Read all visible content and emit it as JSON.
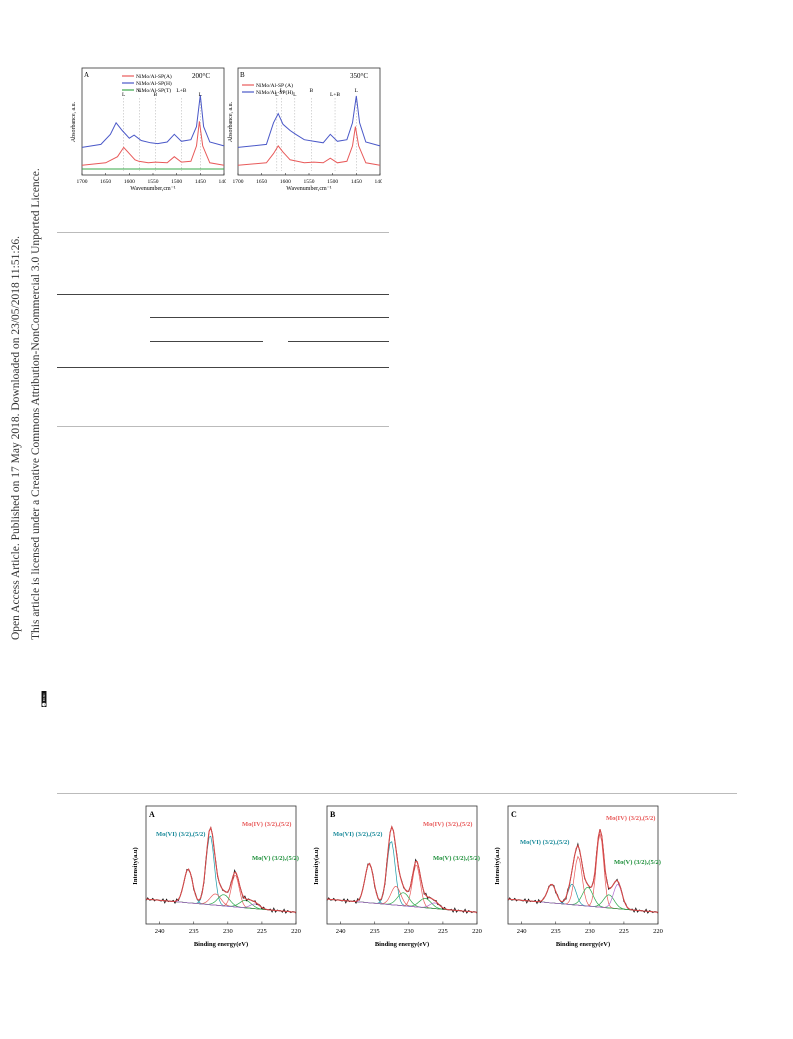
{
  "sidebar": {
    "line1": "Open Access Article. Published on 17 May 2018. Downloaded on 23/05/2018 11:51:26.",
    "line2": "This article is licensed under a Creative Commons Attribution-NonCommercial 3.0 Unported Licence.",
    "badge": "BY-NC"
  },
  "chart_data": [
    {
      "type": "line",
      "panel_label": "A",
      "temperature": "200°C",
      "xlabel": "Wavenumber,cm⁻¹",
      "ylabel": "Absorbance, a.u.",
      "xlim": [
        1700,
        1400
      ],
      "x_ticks": [
        "1700",
        "1650",
        "1600",
        "1550",
        "1500",
        "1450",
        "1400"
      ],
      "series": [
        {
          "name": "NiMo/Al-SP(A)",
          "color": "#e85a5a",
          "x": [
            1700,
            1650,
            1625,
            1612,
            1600,
            1588,
            1580,
            1560,
            1545,
            1520,
            1505,
            1490,
            1470,
            1458,
            1452,
            1445,
            1430,
            1400
          ],
          "y": [
            0.05,
            0.08,
            0.16,
            0.28,
            0.2,
            0.12,
            0.1,
            0.08,
            0.09,
            0.08,
            0.16,
            0.09,
            0.1,
            0.3,
            0.62,
            0.3,
            0.08,
            0.05
          ]
        },
        {
          "name": "NiMo/Al-SP(H)",
          "color": "#4a58c8",
          "x": [
            1700,
            1660,
            1640,
            1628,
            1615,
            1600,
            1590,
            1575,
            1555,
            1540,
            1520,
            1505,
            1490,
            1470,
            1458,
            1450,
            1443,
            1430,
            1400
          ],
          "y": [
            0.28,
            0.32,
            0.45,
            0.6,
            0.5,
            0.4,
            0.44,
            0.37,
            0.34,
            0.33,
            0.35,
            0.45,
            0.36,
            0.38,
            0.55,
            0.96,
            0.55,
            0.35,
            0.3
          ]
        },
        {
          "name": "NiMo/Al-SP(T)",
          "color": "#3aa84a",
          "x": [
            1700,
            1400
          ],
          "y": [
            0.0,
            0.0
          ]
        }
      ],
      "annotations": [
        "L",
        "L",
        "B",
        "L+B",
        "L"
      ]
    },
    {
      "type": "line",
      "panel_label": "B",
      "temperature": "350°C",
      "xlabel": "Wavenumber,cm⁻¹",
      "ylabel": "Absorbance, a.u.",
      "xlim": [
        1700,
        1400
      ],
      "x_ticks": [
        "1700",
        "1650",
        "1600",
        "1550",
        "1500",
        "1450",
        "1400"
      ],
      "series": [
        {
          "name": "NiMo/Al-SP (A)",
          "color": "#e85a5a",
          "x": [
            1700,
            1640,
            1625,
            1615,
            1605,
            1590,
            1575,
            1560,
            1540,
            1520,
            1505,
            1490,
            1470,
            1458,
            1452,
            1445,
            1430,
            1400
          ],
          "y": [
            0.05,
            0.08,
            0.2,
            0.3,
            0.22,
            0.12,
            0.1,
            0.08,
            0.09,
            0.08,
            0.14,
            0.08,
            0.1,
            0.3,
            0.55,
            0.3,
            0.08,
            0.05
          ]
        },
        {
          "name": "NiMo/Al -SP(H)",
          "color": "#4a58c8",
          "x": [
            1700,
            1640,
            1625,
            1615,
            1605,
            1590,
            1578,
            1560,
            1540,
            1520,
            1505,
            1490,
            1470,
            1458,
            1450,
            1443,
            1430,
            1400
          ],
          "y": [
            0.28,
            0.32,
            0.6,
            0.72,
            0.58,
            0.5,
            0.45,
            0.38,
            0.36,
            0.34,
            0.45,
            0.36,
            0.38,
            0.6,
            0.95,
            0.6,
            0.35,
            0.3
          ]
        }
      ],
      "annotations": [
        "L",
        "L",
        "L",
        "B",
        "L+B",
        "L"
      ]
    },
    {
      "type": "line",
      "panel_label": "A",
      "xlabel": "Binding energy(eV)",
      "ylabel": "Intensity(a.u)",
      "xlim": [
        242,
        220
      ],
      "x_ticks": [
        "240",
        "235",
        "230",
        "225",
        "220"
      ],
      "annotations": [
        "Mo(VI) (3/2),(5/2)",
        "Mo(IV) (3/2),(5/2)",
        "Mo(V) (3/2),(5/2)"
      ],
      "series": [
        {
          "name": "",
          "x": [
            242,
            238,
            236,
            235,
            234,
            232.5,
            231.5,
            230,
            229,
            228,
            226,
            224,
            222,
            220
          ],
          "y": [
            0.18,
            0.26,
            0.55,
            0.42,
            0.38,
            0.95,
            0.55,
            0.38,
            0.55,
            0.35,
            0.25,
            0.18,
            0.1,
            0.05
          ]
        }
      ]
    },
    {
      "type": "line",
      "panel_label": "B",
      "xlabel": "Binding energy(eV)",
      "ylabel": "Intensity(a.u)",
      "xlim": [
        242,
        220
      ],
      "x_ticks": [
        "240",
        "235",
        "230",
        "225",
        "220"
      ],
      "annotations": [
        "Mo(VI) (3/2),(5/2)",
        "Mo(IV) (3/2),(5/2)",
        "Mo(V) (3/2),(5/2)"
      ],
      "series": [
        {
          "name": "",
          "x": [
            242,
            238,
            236,
            235,
            234,
            232.5,
            231.5,
            230,
            229,
            228,
            226,
            224,
            222,
            220
          ],
          "y": [
            0.18,
            0.26,
            0.62,
            0.48,
            0.45,
            0.98,
            0.62,
            0.5,
            0.68,
            0.4,
            0.28,
            0.18,
            0.1,
            0.05
          ]
        }
      ]
    },
    {
      "type": "line",
      "panel_label": "C",
      "xlabel": "Binding energy(eV)",
      "ylabel": "Intensity(a.u)",
      "xlim": [
        242,
        220
      ],
      "x_ticks": [
        "240",
        "235",
        "230",
        "225",
        "220"
      ],
      "annotations": [
        "Mo(VI) (3/2),(5/2)",
        "Mo(IV) (3/2),(5/2)",
        "Mo(V) (3/2),(5/2)"
      ],
      "series": [
        {
          "name": "",
          "x": [
            242,
            238,
            236,
            235,
            233.5,
            232,
            231,
            230,
            229,
            228.5,
            227,
            226,
            224,
            222,
            220
          ],
          "y": [
            0.15,
            0.22,
            0.38,
            0.3,
            0.4,
            0.85,
            0.55,
            0.5,
            0.6,
            0.98,
            0.4,
            0.42,
            0.22,
            0.1,
            0.05
          ]
        }
      ]
    }
  ]
}
